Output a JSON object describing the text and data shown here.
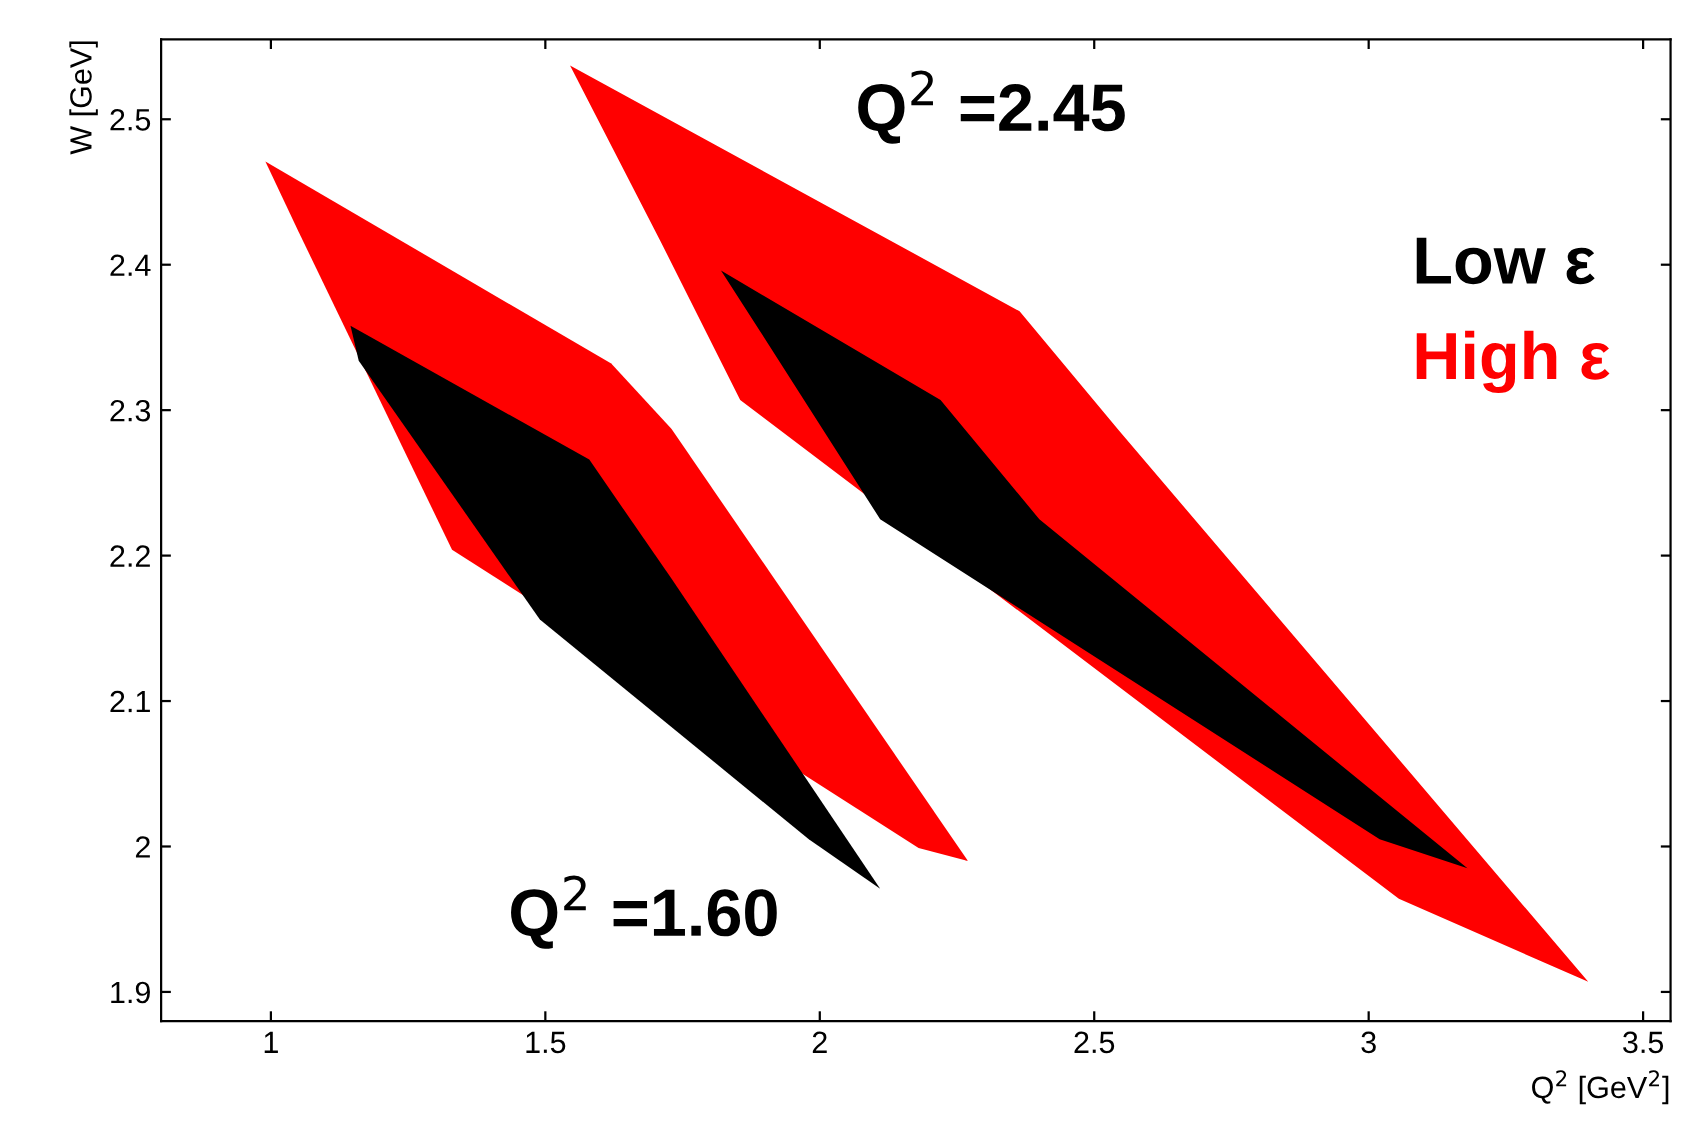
{
  "chart_data": {
    "type": "area",
    "xlabel": "Q$^{2}$ [GeV$^{2}$]",
    "ylabel": "W [GeV]",
    "xlim": [
      0.8,
      3.55
    ],
    "ylim": [
      1.88,
      2.555
    ],
    "xticks": [
      1,
      1.5,
      2,
      2.5,
      3,
      3.5
    ],
    "yticks": [
      1.9,
      2,
      2.1,
      2.2,
      2.3,
      2.4,
      2.5
    ],
    "grid": false,
    "legend": "right",
    "annotations": [
      "Q$^{2}$ =2.45",
      "Q$^{2}$ =1.60"
    ],
    "series": [
      {
        "name": "High ε",
        "color": "#ff0000",
        "x": [
          0.99,
          1.62,
          1.73,
          2.27,
          2.18,
          1.33,
          1.05,
          null,
          1.545,
          2.364,
          2.545,
          3.4,
          3.055,
          1.855,
          1.71
        ],
        "values": [
          2.471,
          2.332,
          2.287,
          1.99,
          1.999,
          2.204,
          2.423,
          null,
          2.537,
          2.368,
          2.286,
          1.907,
          1.964,
          2.307,
          2.416
        ]
      },
      {
        "name": "Low ε",
        "color": "#000000",
        "x": [
          1.145,
          1.58,
          1.73,
          2.11,
          1.98,
          1.49,
          1.16,
          null,
          1.82,
          2.22,
          2.4,
          3.18,
          3.02,
          2.11,
          1.89
        ],
        "values": [
          2.358,
          2.266,
          2.184,
          1.971,
          2.005,
          2.156,
          2.334,
          null,
          2.396,
          2.307,
          2.225,
          1.985,
          2.005,
          2.225,
          2.355
        ]
      }
    ]
  }
}
